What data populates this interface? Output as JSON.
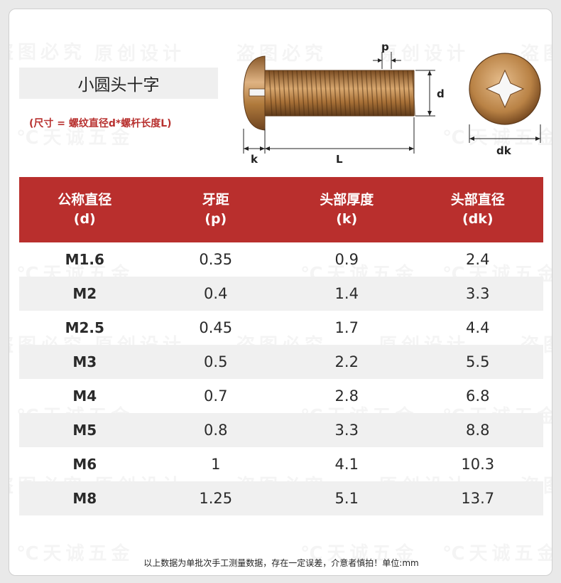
{
  "title": "小圆头十字",
  "note": "(尺寸 = 螺纹直径d*螺杆长度L)",
  "diagram": {
    "labels": {
      "p": "p",
      "d": "d",
      "k": "k",
      "L": "L",
      "dk": "dk"
    },
    "colors": {
      "metal": "#b07a3c",
      "dark": "#6e4420",
      "light": "#dfb383"
    }
  },
  "watermarks": [
    "原创设计",
    "盗图必究",
    "℃天诚五金"
  ],
  "table": {
    "headers": [
      {
        "line1": "公称直径",
        "line2": "(d)"
      },
      {
        "line1": "牙距",
        "line2": "(p)"
      },
      {
        "line1": "头部厚度",
        "line2": "(k)"
      },
      {
        "line1": "头部直径",
        "line2": "(dk)"
      }
    ],
    "rows": [
      [
        "M1.6",
        "0.35",
        "0.9",
        "2.4"
      ],
      [
        "M2",
        "0.4",
        "1.4",
        "3.3"
      ],
      [
        "M2.5",
        "0.45",
        "1.7",
        "4.4"
      ],
      [
        "M3",
        "0.5",
        "2.2",
        "5.5"
      ],
      [
        "M4",
        "0.7",
        "2.8",
        "6.8"
      ],
      [
        "M5",
        "0.8",
        "3.3",
        "8.8"
      ],
      [
        "M6",
        "1",
        "4.1",
        "10.3"
      ],
      [
        "M8",
        "1.25",
        "5.1",
        "13.7"
      ]
    ]
  },
  "footnote": "以上数据为单批次手工测量数据，存在一定误差，介意者慎拍！单位:mm",
  "colors": {
    "header_red": "#b92f2d",
    "note_red": "#b8312f",
    "alt_row": "#f0f0f0"
  }
}
